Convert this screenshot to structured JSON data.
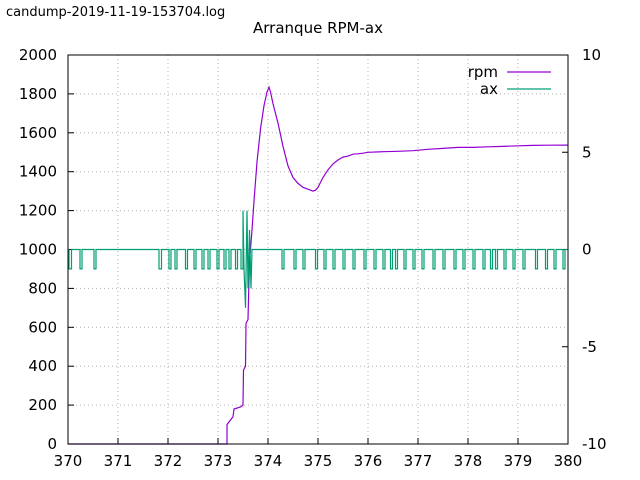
{
  "header": {
    "filename": "candump-2019-11-19-153704.log"
  },
  "chart_data": {
    "type": "line",
    "title": "Arranque RPM-ax",
    "xlabel": "",
    "ylabel": "",
    "y2label": "",
    "xlim": [
      370,
      380
    ],
    "ylim": [
      0,
      2000
    ],
    "y2lim": [
      -10,
      10
    ],
    "x_ticks": [
      "370",
      "371",
      "372",
      "373",
      "374",
      "375",
      "376",
      "377",
      "378",
      "379",
      "380"
    ],
    "y_ticks": [
      "0",
      "200",
      "400",
      "600",
      "800",
      "1000",
      "1200",
      "1400",
      "1600",
      "1800",
      "2000"
    ],
    "y2_ticks": [
      "-10",
      "-5",
      "0",
      "5",
      "10"
    ],
    "grid": true,
    "legend_position": "top-right",
    "series": [
      {
        "name": "rpm",
        "axis": "left",
        "color": "#9400d3",
        "x": [
          370.0,
          373.18,
          373.18,
          373.3,
          373.32,
          373.45,
          373.5,
          373.51,
          373.55,
          373.56,
          373.6,
          373.63,
          373.65,
          373.68,
          373.72,
          373.78,
          373.85,
          373.92,
          373.98,
          374.02,
          374.05,
          374.1,
          374.2,
          374.3,
          374.4,
          374.5,
          374.6,
          374.7,
          374.8,
          374.9,
          374.95,
          375.0,
          375.1,
          375.2,
          375.3,
          375.4,
          375.5,
          375.6,
          375.7,
          375.8,
          375.9,
          376.0,
          376.3,
          376.6,
          376.9,
          377.2,
          377.5,
          377.8,
          378.1,
          378.4,
          378.7,
          379.0,
          379.3,
          379.6,
          380.0
        ],
        "y": [
          0,
          0,
          100,
          140,
          180,
          190,
          200,
          380,
          400,
          620,
          640,
          950,
          1000,
          1100,
          1250,
          1450,
          1620,
          1740,
          1810,
          1835,
          1810,
          1750,
          1650,
          1530,
          1430,
          1370,
          1340,
          1320,
          1310,
          1300,
          1305,
          1320,
          1370,
          1410,
          1440,
          1460,
          1475,
          1480,
          1490,
          1492,
          1495,
          1500,
          1503,
          1505,
          1508,
          1515,
          1520,
          1525,
          1525,
          1528,
          1530,
          1533,
          1535,
          1536,
          1537
        ]
      },
      {
        "name": "ax",
        "axis": "right",
        "color": "#009e73",
        "baseline": 0,
        "dips": [
          [
            370.02,
            370.07,
            -1
          ],
          [
            370.24,
            370.28,
            -1
          ],
          [
            370.52,
            370.56,
            -1
          ],
          [
            371.82,
            371.87,
            -1
          ],
          [
            372.02,
            372.06,
            -1
          ],
          [
            372.14,
            372.18,
            -1
          ],
          [
            372.35,
            372.39,
            -1
          ],
          [
            372.52,
            372.56,
            -1
          ],
          [
            372.68,
            372.72,
            -1
          ],
          [
            372.8,
            372.84,
            -1
          ],
          [
            372.98,
            373.02,
            -1
          ],
          [
            373.12,
            373.16,
            -1
          ],
          [
            373.22,
            373.26,
            -1
          ],
          [
            373.35,
            373.39,
            -1
          ],
          [
            373.46,
            373.5,
            -1
          ],
          [
            374.28,
            374.32,
            -1
          ],
          [
            374.52,
            374.56,
            -1
          ],
          [
            374.7,
            374.74,
            -1
          ],
          [
            374.95,
            374.99,
            -1
          ],
          [
            375.12,
            375.16,
            -1
          ],
          [
            375.3,
            375.34,
            -1
          ],
          [
            375.5,
            375.54,
            -1
          ],
          [
            375.7,
            375.74,
            -1
          ],
          [
            375.92,
            375.96,
            -1
          ],
          [
            376.12,
            376.16,
            -1
          ],
          [
            376.3,
            376.34,
            -1
          ],
          [
            376.45,
            376.49,
            -1
          ],
          [
            376.55,
            376.59,
            -1
          ],
          [
            376.72,
            376.76,
            -1
          ],
          [
            376.9,
            376.94,
            -1
          ],
          [
            377.08,
            377.12,
            -1
          ],
          [
            377.3,
            377.34,
            -1
          ],
          [
            377.5,
            377.54,
            -1
          ],
          [
            377.72,
            377.76,
            -1
          ],
          [
            377.9,
            377.94,
            -1
          ],
          [
            378.1,
            378.14,
            -1
          ],
          [
            378.3,
            378.34,
            -1
          ],
          [
            378.45,
            378.49,
            -1
          ],
          [
            378.55,
            378.59,
            -1
          ],
          [
            378.72,
            378.76,
            -1
          ],
          [
            378.9,
            378.94,
            -1
          ],
          [
            379.1,
            379.14,
            -1
          ],
          [
            379.35,
            379.39,
            -1
          ],
          [
            379.55,
            379.59,
            -1
          ],
          [
            379.72,
            379.76,
            -1
          ],
          [
            379.9,
            379.94,
            -1
          ]
        ],
        "spikes": [
          [
            373.5,
            2.0
          ],
          [
            373.52,
            -1.0
          ],
          [
            373.55,
            -3.0
          ],
          [
            373.58,
            2.0
          ],
          [
            373.6,
            -2.0
          ],
          [
            373.63,
            1.0
          ],
          [
            373.66,
            -2.0
          ],
          [
            373.68,
            0.0
          ]
        ]
      }
    ]
  }
}
